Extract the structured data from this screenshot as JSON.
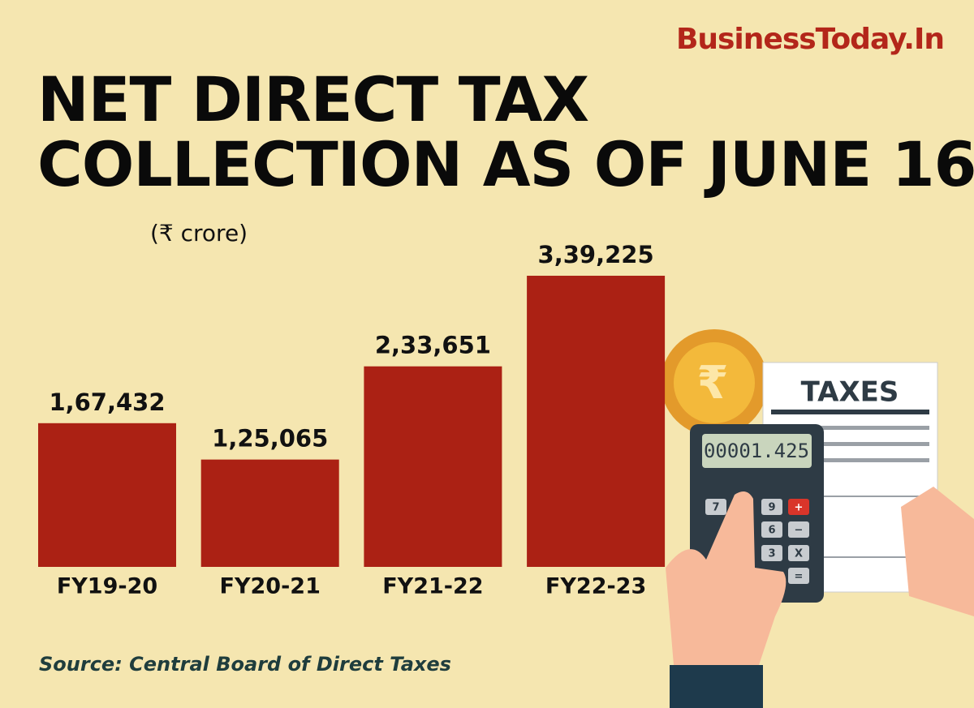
{
  "brand": "BusinessToday.In",
  "chart_data": {
    "type": "bar",
    "title": [
      "NET DIRECT TAX",
      "COLLECTION AS OF JUNE 16"
    ],
    "units": "(₹ crore)",
    "categories": [
      "FY19-20",
      "FY20-21",
      "FY21-22",
      "FY22-23"
    ],
    "values": [
      167432,
      125065,
      233651,
      339225
    ],
    "value_labels": [
      "1,67,432",
      "1,25,065",
      "2,33,651",
      "3,39,225"
    ],
    "color": "#ab2114"
  },
  "illustration": {
    "coin_symbol": "₹",
    "paper_title": "TAXES",
    "display": "00001.425",
    "keys": [
      "7",
      "9",
      "+",
      "6",
      "−",
      "3",
      "X",
      "="
    ]
  },
  "source": "Source: Central Board of Direct Taxes"
}
